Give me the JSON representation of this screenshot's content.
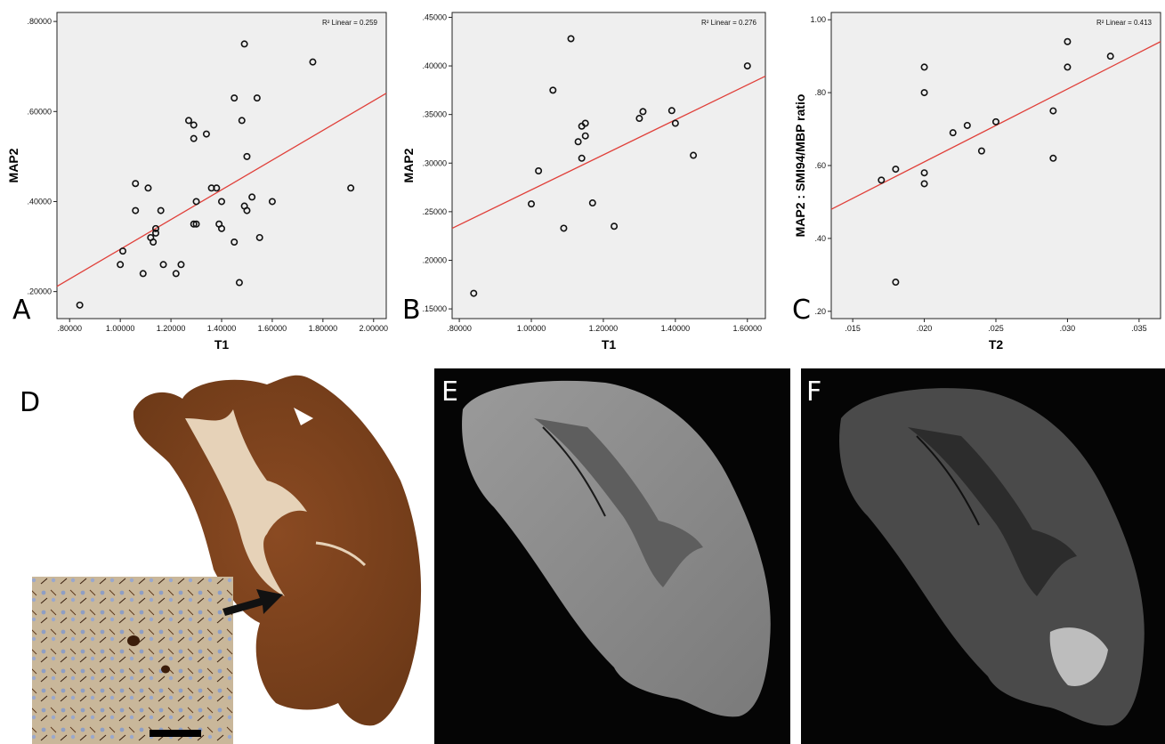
{
  "panel_labels": {
    "a": "A",
    "b": "B",
    "c": "C",
    "d": "D",
    "e": "E",
    "f": "F"
  },
  "chart_data": [
    {
      "type": "scatter",
      "panel": "A",
      "xlabel": "T1",
      "ylabel": "MAP2",
      "fit_label": "R² Linear = 0.259",
      "xlim": [
        0.75,
        2.05
      ],
      "ylim": [
        0.14,
        0.82
      ],
      "xticks": [
        0.8,
        1.0,
        1.2,
        1.4,
        1.6,
        1.8,
        2.0
      ],
      "xtick_labels": [
        ".80000",
        "1.00000",
        "1.20000",
        "1.40000",
        "1.60000",
        "1.80000",
        "2.00000"
      ],
      "yticks": [
        0.2,
        0.4,
        0.6,
        0.8
      ],
      "ytick_labels": [
        ".20000",
        ".40000",
        ".60000",
        ".80000"
      ],
      "fit_line": {
        "slope": 0.33,
        "intercept": -0.036
      },
      "points": [
        [
          0.84,
          0.17
        ],
        [
          1.0,
          0.26
        ],
        [
          1.01,
          0.29
        ],
        [
          1.06,
          0.44
        ],
        [
          1.06,
          0.38
        ],
        [
          1.09,
          0.24
        ],
        [
          1.11,
          0.43
        ],
        [
          1.12,
          0.32
        ],
        [
          1.13,
          0.31
        ],
        [
          1.14,
          0.34
        ],
        [
          1.14,
          0.33
        ],
        [
          1.16,
          0.38
        ],
        [
          1.17,
          0.26
        ],
        [
          1.22,
          0.24
        ],
        [
          1.24,
          0.26
        ],
        [
          1.27,
          0.58
        ],
        [
          1.29,
          0.57
        ],
        [
          1.29,
          0.54
        ],
        [
          1.29,
          0.35
        ],
        [
          1.3,
          0.35
        ],
        [
          1.3,
          0.4
        ],
        [
          1.34,
          0.55
        ],
        [
          1.36,
          0.43
        ],
        [
          1.38,
          0.43
        ],
        [
          1.39,
          0.35
        ],
        [
          1.4,
          0.4
        ],
        [
          1.4,
          0.34
        ],
        [
          1.45,
          0.63
        ],
        [
          1.45,
          0.31
        ],
        [
          1.47,
          0.22
        ],
        [
          1.48,
          0.58
        ],
        [
          1.49,
          0.75
        ],
        [
          1.49,
          0.39
        ],
        [
          1.5,
          0.5
        ],
        [
          1.5,
          0.38
        ],
        [
          1.52,
          0.41
        ],
        [
          1.54,
          0.63
        ],
        [
          1.55,
          0.32
        ],
        [
          1.6,
          0.4
        ],
        [
          1.76,
          0.71
        ],
        [
          1.91,
          0.43
        ]
      ]
    },
    {
      "type": "scatter",
      "panel": "B",
      "xlabel": "T1",
      "ylabel": "MAP2",
      "fit_label": "R² Linear = 0.276",
      "xlim": [
        0.78,
        1.65
      ],
      "ylim": [
        0.14,
        0.455
      ],
      "xticks": [
        0.8,
        1.0,
        1.2,
        1.4,
        1.6
      ],
      "xtick_labels": [
        ".80000",
        "1.00000",
        "1.20000",
        "1.40000",
        "1.60000"
      ],
      "yticks": [
        0.15,
        0.2,
        0.25,
        0.3,
        0.35,
        0.4,
        0.45
      ],
      "ytick_labels": [
        ".15000",
        ".20000",
        ".25000",
        ".30000",
        ".35000",
        ".40000",
        ".45000"
      ],
      "fit_line": {
        "slope": 0.18,
        "intercept": 0.0925
      },
      "points": [
        [
          0.84,
          0.166
        ],
        [
          1.0,
          0.258
        ],
        [
          1.02,
          0.292
        ],
        [
          1.06,
          0.375
        ],
        [
          1.09,
          0.233
        ],
        [
          1.11,
          0.428
        ],
        [
          1.13,
          0.322
        ],
        [
          1.14,
          0.305
        ],
        [
          1.14,
          0.338
        ],
        [
          1.15,
          0.341
        ],
        [
          1.15,
          0.328
        ],
        [
          1.17,
          0.259
        ],
        [
          1.23,
          0.235
        ],
        [
          1.3,
          0.346
        ],
        [
          1.31,
          0.353
        ],
        [
          1.39,
          0.354
        ],
        [
          1.4,
          0.341
        ],
        [
          1.45,
          0.308
        ],
        [
          1.6,
          0.4
        ]
      ]
    },
    {
      "type": "scatter",
      "panel": "C",
      "xlabel": "T2",
      "ylabel": "MAP2 : SMI94/MBP ratio",
      "fit_label": "R² Linear = 0.413",
      "xlim": [
        0.0135,
        0.0365
      ],
      "ylim": [
        0.18,
        1.02
      ],
      "xticks": [
        0.015,
        0.02,
        0.025,
        0.03,
        0.035
      ],
      "xtick_labels": [
        ".015",
        ".020",
        ".025",
        ".030",
        ".035"
      ],
      "yticks": [
        0.2,
        0.4,
        0.6,
        0.8,
        1.0
      ],
      "ytick_labels": [
        ".20",
        ".40",
        ".60",
        ".80",
        "1.00"
      ],
      "fit_line": {
        "slope": 20.0,
        "intercept": 0.21
      },
      "points": [
        [
          0.017,
          0.56
        ],
        [
          0.018,
          0.59
        ],
        [
          0.018,
          0.28
        ],
        [
          0.02,
          0.87
        ],
        [
          0.02,
          0.8
        ],
        [
          0.02,
          0.58
        ],
        [
          0.02,
          0.55
        ],
        [
          0.022,
          0.69
        ],
        [
          0.023,
          0.71
        ],
        [
          0.024,
          0.64
        ],
        [
          0.025,
          0.72
        ],
        [
          0.029,
          0.75
        ],
        [
          0.029,
          0.62
        ],
        [
          0.03,
          0.94
        ],
        [
          0.03,
          0.87
        ],
        [
          0.033,
          0.9
        ]
      ]
    }
  ]
}
